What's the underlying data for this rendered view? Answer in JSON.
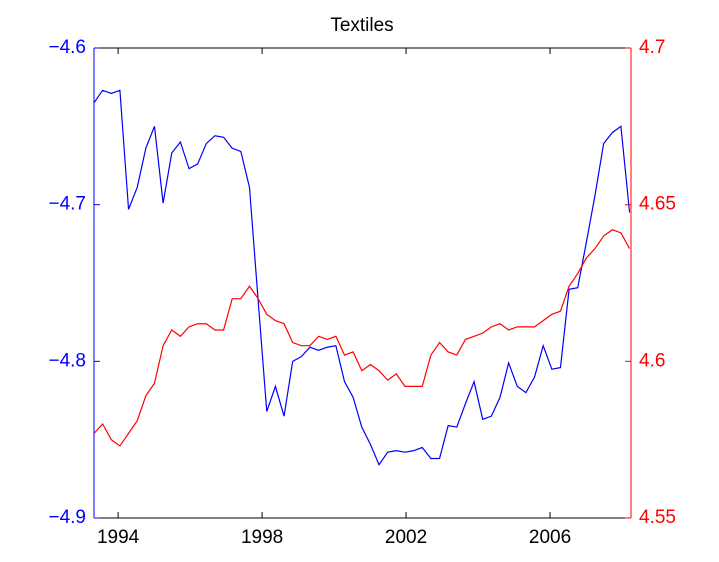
{
  "chart_data": {
    "type": "line",
    "title": "Textiles",
    "x": [
      1993.33,
      1993.57,
      1993.81,
      1994.05,
      1994.29,
      1994.53,
      1994.77,
      1995.01,
      1995.25,
      1995.49,
      1995.73,
      1995.97,
      1996.21,
      1996.45,
      1996.69,
      1996.93,
      1997.17,
      1997.41,
      1997.65,
      1997.89,
      1998.13,
      1998.37,
      1998.61,
      1998.85,
      1999.09,
      1999.33,
      1999.57,
      1999.81,
      2000.05,
      2000.29,
      2000.53,
      2000.77,
      2001.01,
      2001.25,
      2001.49,
      2001.73,
      2001.97,
      2002.21,
      2002.45,
      2002.69,
      2002.93,
      2003.17,
      2003.41,
      2003.65,
      2003.89,
      2004.13,
      2004.37,
      2004.61,
      2004.85,
      2005.09,
      2005.33,
      2005.57,
      2005.81,
      2006.05,
      2006.29,
      2006.53,
      2006.77,
      2007.01,
      2007.25,
      2007.49,
      2007.73,
      2007.97,
      2008.21
    ],
    "xlim": [
      1993.33,
      2008.25
    ],
    "xticks": [
      1994,
      1998,
      2002,
      2006
    ],
    "ylim": [
      -4.9,
      -4.6
    ],
    "yticks": [
      {
        "value": -4.9,
        "label": "−4.9"
      },
      {
        "value": -4.8,
        "label": "−4.8"
      },
      {
        "value": -4.7,
        "label": "−4.7"
      },
      {
        "value": -4.6,
        "label": "−4.6"
      }
    ],
    "y2lim": [
      4.55,
      4.7
    ],
    "y2ticks": [
      4.55,
      4.6,
      4.65,
      4.7
    ],
    "series": [
      {
        "color": "#0000ff",
        "values": [
          -4.635,
          -4.627,
          -4.629,
          -4.627,
          -4.703,
          -4.689,
          -4.664,
          -4.65,
          -4.699,
          -4.667,
          -4.66,
          -4.677,
          -4.674,
          -4.661,
          -4.656,
          -4.657,
          -4.664,
          -4.666,
          -4.689,
          -4.761,
          -4.832,
          -4.816,
          -4.835,
          -4.8,
          -4.797,
          -4.791,
          -4.793,
          -4.791,
          -4.79,
          -4.813,
          -4.823,
          -4.842,
          -4.853,
          -4.866,
          -4.858,
          -4.857,
          -4.858,
          -4.857,
          -4.855,
          -4.862,
          -4.862,
          -4.841,
          -4.842,
          -4.827,
          -4.813,
          -4.837,
          -4.835,
          -4.823,
          -4.801,
          -4.816,
          -4.82,
          -4.81,
          -4.79,
          -4.805,
          -4.804,
          -4.754,
          -4.753,
          -4.724,
          -4.694,
          -4.661,
          -4.654,
          -4.65,
          -4.705
        ]
      },
      {
        "color": "#ff0000",
        "axis": "y2",
        "values": [
          4.577,
          4.58,
          4.575,
          4.573,
          4.577,
          4.581,
          4.589,
          4.593,
          4.605,
          4.61,
          4.608,
          4.611,
          4.612,
          4.612,
          4.61,
          4.61,
          4.62,
          4.62,
          4.624,
          4.62,
          4.615,
          4.613,
          4.612,
          4.606,
          4.605,
          4.605,
          4.608,
          4.607,
          4.608,
          4.602,
          4.603,
          4.597,
          4.599,
          4.597,
          4.594,
          4.596,
          4.592,
          4.592,
          4.592,
          4.602,
          4.606,
          4.603,
          4.602,
          4.607,
          4.608,
          4.609,
          4.611,
          4.612,
          4.61,
          4.611,
          4.611,
          4.611,
          4.613,
          4.615,
          4.616,
          4.624,
          4.628,
          4.633,
          4.636,
          4.64,
          4.642,
          4.641,
          4.636
        ]
      }
    ]
  }
}
